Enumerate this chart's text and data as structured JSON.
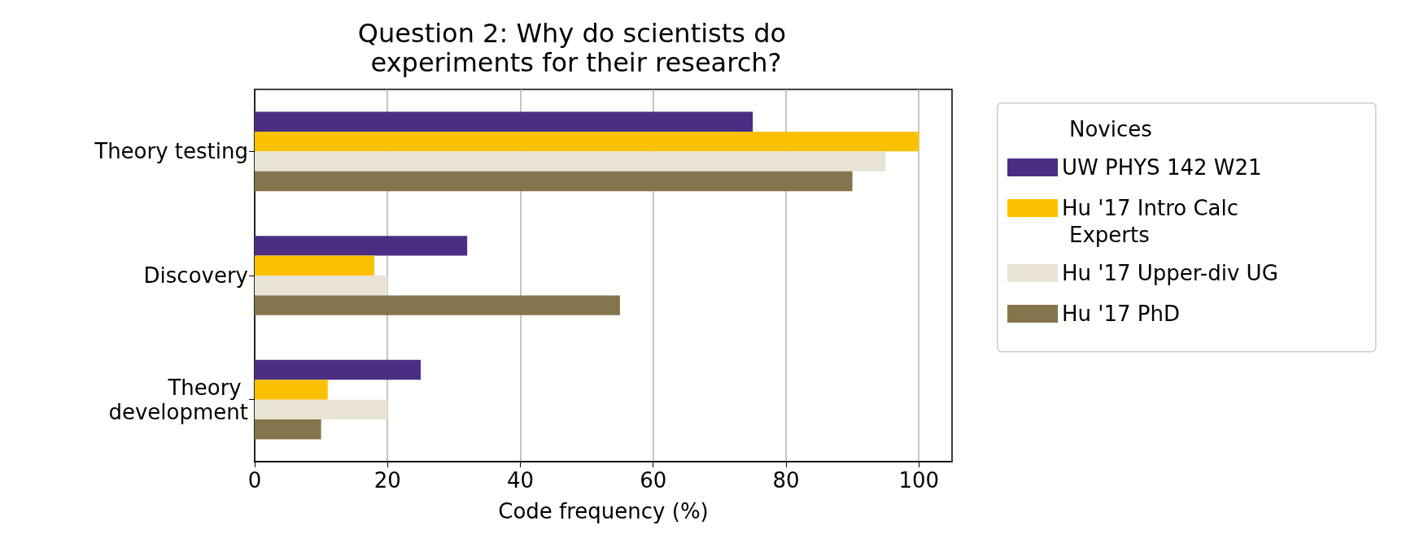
{
  "chart_data": {
    "type": "bar",
    "orientation": "horizontal",
    "title": "Question 2: Why do scientists do experiments for their research?",
    "xlabel": "Code frequency (%)",
    "categories": [
      "Theory testing",
      "Discovery",
      "Theory development"
    ],
    "series": [
      {
        "name": "UW PHYS 142 W21",
        "color": "#4b2e83",
        "values": [
          75,
          32,
          25
        ]
      },
      {
        "name": "Hu '17 Intro Calc",
        "color": "#fbc100",
        "values": [
          100,
          18,
          11
        ]
      },
      {
        "name": "Hu '17 Upper-div UG",
        "color": "#e8e3d4",
        "values": [
          95,
          20,
          20
        ]
      },
      {
        "name": "Hu '17 PhD",
        "color": "#85754d",
        "values": [
          90,
          55,
          10
        ]
      }
    ],
    "annotations": [
      "Novices",
      "Experts"
    ],
    "xlim": [
      0,
      105
    ],
    "xticks": [
      0,
      20,
      40,
      60,
      80,
      100
    ],
    "grid": "x",
    "legend": "right"
  }
}
